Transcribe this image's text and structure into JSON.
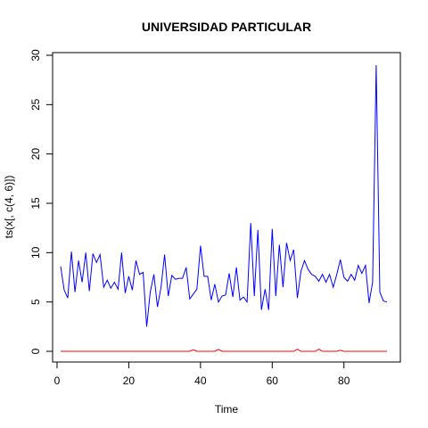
{
  "chart_data": {
    "type": "line",
    "title": "UNIVERSIDAD PARTICULAR",
    "xlabel": "Time",
    "ylabel": "ts(x[, c(4, 6)])",
    "xlim": [
      1,
      92
    ],
    "ylim": [
      0,
      30
    ],
    "x_ticks": [
      "0",
      "20",
      "40",
      "60",
      "80"
    ],
    "y_ticks": [
      "0",
      "5",
      "10",
      "15",
      "20",
      "25",
      "30"
    ],
    "grid": false,
    "legend": "none",
    "x": [
      1,
      2,
      3,
      4,
      5,
      6,
      7,
      8,
      9,
      10,
      11,
      12,
      13,
      14,
      15,
      16,
      17,
      18,
      19,
      20,
      21,
      22,
      23,
      24,
      25,
      26,
      27,
      28,
      29,
      30,
      31,
      32,
      33,
      34,
      35,
      36,
      37,
      38,
      39,
      40,
      41,
      42,
      43,
      44,
      45,
      46,
      47,
      48,
      49,
      50,
      51,
      52,
      53,
      54,
      55,
      56,
      57,
      58,
      59,
      60,
      61,
      62,
      63,
      64,
      65,
      66,
      67,
      68,
      69,
      70,
      71,
      72,
      73,
      74,
      75,
      76,
      77,
      78,
      79,
      80,
      81,
      82,
      83,
      84,
      85,
      86,
      87,
      88,
      89,
      90,
      91,
      92
    ],
    "series": [
      {
        "color": "#0000ff",
        "values": [
          8.6,
          6.2,
          5.4,
          10.1,
          6.0,
          9.2,
          7.0,
          10.0,
          6.1,
          9.9,
          9.0,
          9.8,
          6.5,
          7.2,
          6.4,
          7.0,
          6.3,
          10.0,
          5.9,
          7.6,
          6.2,
          9.2,
          7.8,
          8.0,
          2.5,
          6.0,
          7.8,
          4.5,
          6.5,
          9.8,
          5.6,
          7.7,
          7.3,
          7.4,
          7.4,
          8.5,
          5.3,
          5.8,
          6.3,
          10.7,
          7.6,
          7.6,
          5.2,
          6.8,
          5.0,
          5.6,
          5.7,
          7.9,
          5.5,
          8.5,
          5.2,
          5.5,
          5.0,
          13.0,
          5.6,
          12.3,
          4.2,
          6.3,
          4.2,
          12.4,
          5.6,
          10.8,
          6.5,
          11.0,
          9.2,
          10.3,
          5.4,
          8.1,
          9.2,
          8.3,
          7.8,
          7.6,
          7.1,
          7.8,
          7.0,
          7.8,
          6.5,
          7.8,
          9.3,
          7.5,
          7.1,
          7.8,
          7.2,
          8.7,
          7.9,
          8.7,
          4.9,
          7.0,
          29.0,
          6.0,
          5.1,
          5.0
        ]
      },
      {
        "color": "#ff0000",
        "values": [
          0,
          0,
          0,
          0,
          0,
          0,
          0,
          0,
          0,
          0,
          0,
          0,
          0,
          0,
          0,
          0,
          0,
          0,
          0,
          0,
          0,
          0,
          0,
          0,
          0,
          0,
          0,
          0,
          0,
          0,
          0,
          0,
          0,
          0,
          0,
          0,
          0,
          0.15,
          0,
          0,
          0,
          0,
          0,
          0,
          0.2,
          0,
          0,
          0,
          0,
          0,
          0,
          0,
          0,
          0,
          0,
          0,
          0,
          0,
          0,
          0,
          0,
          0,
          0,
          0,
          0,
          0,
          0.22,
          0,
          0,
          0,
          0,
          0,
          0.22,
          0,
          0,
          0,
          0,
          0,
          0.1,
          0,
          0,
          0,
          0,
          0,
          0,
          0,
          0,
          0,
          0,
          0,
          0,
          0
        ]
      }
    ]
  }
}
